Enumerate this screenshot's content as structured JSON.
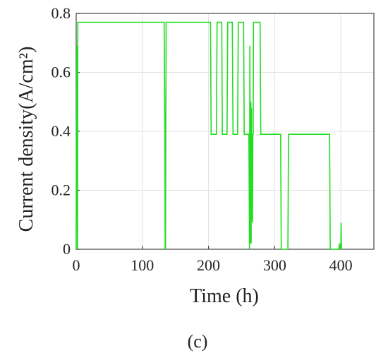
{
  "chart_data": {
    "type": "line",
    "xlabel": "Time (h)",
    "ylabel": "Current density(A/cm²)",
    "panel_label": "(c)",
    "xlim": [
      0,
      450
    ],
    "ylim": [
      0,
      0.8
    ],
    "xticks": [
      0,
      100,
      200,
      300,
      400
    ],
    "xtick_labels": [
      "0",
      "100",
      "200",
      "300",
      "400"
    ],
    "yticks": [
      0,
      0.2,
      0.4,
      0.6,
      0.8
    ],
    "ytick_labels": [
      "0",
      "0.2",
      "0.4",
      "0.6",
      "0.8"
    ],
    "grid": true,
    "line_color": "#22dd22",
    "series": [
      {
        "x": [
          0,
          0.5,
          1,
          2,
          2.5,
          3,
          4,
          133,
          134,
          134.5,
          135,
          136,
          137,
          203,
          204,
          212,
          213,
          220,
          221,
          228,
          229,
          236,
          237,
          244,
          245,
          253,
          254,
          261,
          262,
          262.5,
          263,
          263.5,
          264,
          264.5,
          265,
          265.5,
          266,
          266.5,
          267,
          267.5,
          268,
          269,
          270,
          278,
          279,
          309,
          310,
          311,
          320,
          321,
          383,
          384,
          385,
          397,
          398,
          399,
          400,
          400.5,
          401
        ],
        "y": [
          0,
          0.42,
          0.69,
          0,
          0.77,
          0.77,
          0.77,
          0.77,
          0.4,
          0,
          0,
          0.77,
          0.77,
          0.77,
          0.39,
          0.39,
          0.77,
          0.77,
          0.39,
          0.39,
          0.77,
          0.77,
          0.39,
          0.39,
          0.77,
          0.77,
          0.39,
          0.39,
          0,
          0.69,
          0.02,
          0.41,
          0.5,
          0.02,
          0.48,
          0.1,
          0.39,
          0.09,
          0.39,
          0.39,
          0.77,
          0.77,
          0.77,
          0.77,
          0.39,
          0.39,
          0,
          0,
          0,
          0.39,
          0.39,
          0,
          0,
          0,
          0.02,
          0,
          0,
          0.09,
          0
        ]
      }
    ]
  }
}
